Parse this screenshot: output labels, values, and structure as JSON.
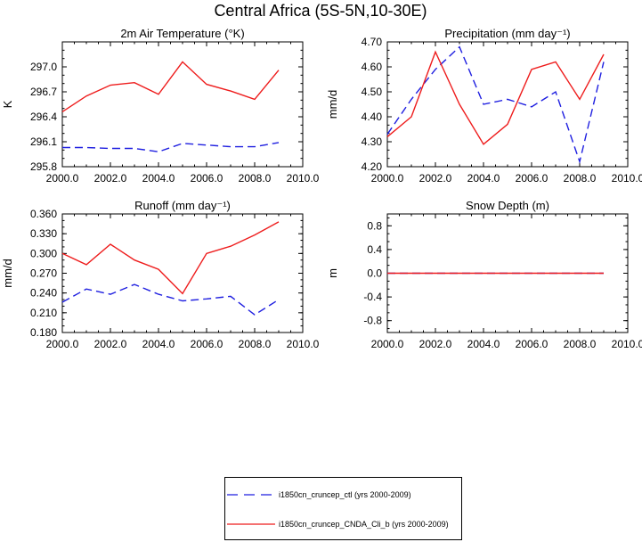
{
  "figure": {
    "title": "Central Africa (5S-5N,10-30E)"
  },
  "colors": {
    "ctl": "#1f1fe0",
    "exp": "#ee1c1c",
    "axis": "#000000"
  },
  "legend": {
    "ctl_label": "i1850cn_cruncep_ctl (yrs 2000-2009)",
    "exp_label": "i1850cn_cruncep_CNDA_Cli_b (yrs 2000-2009)"
  },
  "chart_data": [
    {
      "type": "line",
      "title": "2m Air Temperature (°K)",
      "xlabel": "",
      "ylabel": "K",
      "xlim": [
        2000,
        2010
      ],
      "ylim": [
        295.8,
        297.3
      ],
      "x_ticks": [
        "2000.0",
        "2002.0",
        "2004.0",
        "2006.0",
        "2008.0",
        "2010.0"
      ],
      "y_ticks": [
        "295.8",
        "296.1",
        "296.4",
        "296.7",
        "297.0"
      ],
      "x": [
        2000,
        2001,
        2002,
        2003,
        2004,
        2005,
        2006,
        2007,
        2008,
        2009
      ],
      "series": [
        {
          "key": "ctl",
          "style": "dashed",
          "values": [
            296.03,
            296.03,
            296.02,
            296.02,
            295.98,
            296.08,
            296.06,
            296.04,
            296.04,
            296.09
          ]
        },
        {
          "key": "exp",
          "style": "solid",
          "values": [
            296.46,
            296.65,
            296.78,
            296.81,
            296.67,
            297.06,
            296.79,
            296.71,
            296.61,
            296.96
          ]
        }
      ]
    },
    {
      "type": "line",
      "title": "Precipitation (mm day⁻¹)",
      "xlabel": "",
      "ylabel": "mm/d",
      "xlim": [
        2000,
        2010
      ],
      "ylim": [
        4.2,
        4.7
      ],
      "x_ticks": [
        "2000.0",
        "2002.0",
        "2004.0",
        "2006.0",
        "2008.0",
        "2010.0"
      ],
      "y_ticks": [
        "4.20",
        "4.30",
        "4.40",
        "4.50",
        "4.60",
        "4.70"
      ],
      "x": [
        2000,
        2001,
        2002,
        2003,
        2004,
        2005,
        2006,
        2007,
        2008,
        2009
      ],
      "series": [
        {
          "key": "ctl",
          "style": "dashed",
          "values": [
            4.33,
            4.47,
            4.59,
            4.68,
            4.45,
            4.47,
            4.44,
            4.5,
            4.22,
            4.62
          ]
        },
        {
          "key": "exp",
          "style": "solid",
          "values": [
            4.32,
            4.4,
            4.66,
            4.45,
            4.29,
            4.37,
            4.59,
            4.62,
            4.47,
            4.65
          ]
        }
      ]
    },
    {
      "type": "line",
      "title": "Runoff (mm day⁻¹)",
      "xlabel": "",
      "ylabel": "mm/d",
      "xlim": [
        2000,
        2010
      ],
      "ylim": [
        0.18,
        0.36
      ],
      "x_ticks": [
        "2000.0",
        "2002.0",
        "2004.0",
        "2006.0",
        "2008.0",
        "2010.0"
      ],
      "y_ticks": [
        "0.180",
        "0.210",
        "0.240",
        "0.270",
        "0.300",
        "0.330",
        "0.360"
      ],
      "x": [
        2000,
        2001,
        2002,
        2003,
        2004,
        2005,
        2006,
        2007,
        2008,
        2009
      ],
      "series": [
        {
          "key": "ctl",
          "style": "dashed",
          "values": [
            0.226,
            0.246,
            0.238,
            0.253,
            0.238,
            0.228,
            0.231,
            0.235,
            0.207,
            0.23
          ]
        },
        {
          "key": "exp",
          "style": "solid",
          "values": [
            0.3,
            0.283,
            0.314,
            0.29,
            0.276,
            0.239,
            0.3,
            0.311,
            0.328,
            0.348
          ]
        }
      ]
    },
    {
      "type": "line",
      "title": "Snow Depth (m)",
      "xlabel": "",
      "ylabel": "m",
      "xlim": [
        2000,
        2010
      ],
      "ylim": [
        -1.0,
        1.0
      ],
      "x_ticks": [
        "2000.0",
        "2002.0",
        "2004.0",
        "2006.0",
        "2008.0",
        "2010.0"
      ],
      "y_ticks": [
        "-0.8",
        "-0.4",
        "0.0",
        "0.4",
        "0.8"
      ],
      "x": [
        2000,
        2001,
        2002,
        2003,
        2004,
        2005,
        2006,
        2007,
        2008,
        2009
      ],
      "series": [
        {
          "key": "ctl",
          "style": "dashed",
          "values": [
            0,
            0,
            0,
            0,
            0,
            0,
            0,
            0,
            0,
            0
          ]
        },
        {
          "key": "exp",
          "style": "solid",
          "values": [
            0,
            0,
            0,
            0,
            0,
            0,
            0,
            0,
            0,
            0
          ]
        }
      ]
    }
  ]
}
